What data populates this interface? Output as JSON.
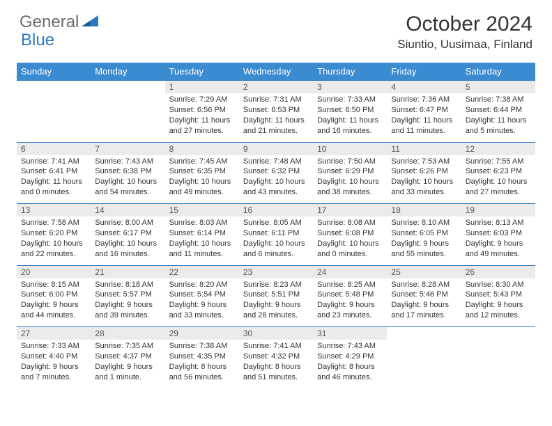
{
  "brand": {
    "part1": "General",
    "part2": "Blue"
  },
  "title": "October 2024",
  "location": "Siuntio, Uusimaa, Finland",
  "colors": {
    "header_bg": "#3b8bd0",
    "daynum_bg": "#ebebeb",
    "border": "#2b79c2",
    "text": "#333333",
    "logo_gray": "#6b6b6b",
    "logo_blue": "#2b79c2"
  },
  "font": {
    "family": "Arial",
    "title_size": 30,
    "location_size": 17,
    "header_size": 13,
    "daynum_size": 12,
    "body_size": 11
  },
  "day_headers": [
    "Sunday",
    "Monday",
    "Tuesday",
    "Wednesday",
    "Thursday",
    "Friday",
    "Saturday"
  ],
  "weeks": [
    [
      null,
      null,
      {
        "n": "1",
        "sr": "7:29 AM",
        "ss": "6:56 PM",
        "dl": "11 hours and 27 minutes."
      },
      {
        "n": "2",
        "sr": "7:31 AM",
        "ss": "6:53 PM",
        "dl": "11 hours and 21 minutes."
      },
      {
        "n": "3",
        "sr": "7:33 AM",
        "ss": "6:50 PM",
        "dl": "11 hours and 16 minutes."
      },
      {
        "n": "4",
        "sr": "7:36 AM",
        "ss": "6:47 PM",
        "dl": "11 hours and 11 minutes."
      },
      {
        "n": "5",
        "sr": "7:38 AM",
        "ss": "6:44 PM",
        "dl": "11 hours and 5 minutes."
      }
    ],
    [
      {
        "n": "6",
        "sr": "7:41 AM",
        "ss": "6:41 PM",
        "dl": "11 hours and 0 minutes."
      },
      {
        "n": "7",
        "sr": "7:43 AM",
        "ss": "6:38 PM",
        "dl": "10 hours and 54 minutes."
      },
      {
        "n": "8",
        "sr": "7:45 AM",
        "ss": "6:35 PM",
        "dl": "10 hours and 49 minutes."
      },
      {
        "n": "9",
        "sr": "7:48 AM",
        "ss": "6:32 PM",
        "dl": "10 hours and 43 minutes."
      },
      {
        "n": "10",
        "sr": "7:50 AM",
        "ss": "6:29 PM",
        "dl": "10 hours and 38 minutes."
      },
      {
        "n": "11",
        "sr": "7:53 AM",
        "ss": "6:26 PM",
        "dl": "10 hours and 33 minutes."
      },
      {
        "n": "12",
        "sr": "7:55 AM",
        "ss": "6:23 PM",
        "dl": "10 hours and 27 minutes."
      }
    ],
    [
      {
        "n": "13",
        "sr": "7:58 AM",
        "ss": "6:20 PM",
        "dl": "10 hours and 22 minutes."
      },
      {
        "n": "14",
        "sr": "8:00 AM",
        "ss": "6:17 PM",
        "dl": "10 hours and 16 minutes."
      },
      {
        "n": "15",
        "sr": "8:03 AM",
        "ss": "6:14 PM",
        "dl": "10 hours and 11 minutes."
      },
      {
        "n": "16",
        "sr": "8:05 AM",
        "ss": "6:11 PM",
        "dl": "10 hours and 6 minutes."
      },
      {
        "n": "17",
        "sr": "8:08 AM",
        "ss": "6:08 PM",
        "dl": "10 hours and 0 minutes."
      },
      {
        "n": "18",
        "sr": "8:10 AM",
        "ss": "6:05 PM",
        "dl": "9 hours and 55 minutes."
      },
      {
        "n": "19",
        "sr": "8:13 AM",
        "ss": "6:03 PM",
        "dl": "9 hours and 49 minutes."
      }
    ],
    [
      {
        "n": "20",
        "sr": "8:15 AM",
        "ss": "6:00 PM",
        "dl": "9 hours and 44 minutes."
      },
      {
        "n": "21",
        "sr": "8:18 AM",
        "ss": "5:57 PM",
        "dl": "9 hours and 39 minutes."
      },
      {
        "n": "22",
        "sr": "8:20 AM",
        "ss": "5:54 PM",
        "dl": "9 hours and 33 minutes."
      },
      {
        "n": "23",
        "sr": "8:23 AM",
        "ss": "5:51 PM",
        "dl": "9 hours and 28 minutes."
      },
      {
        "n": "24",
        "sr": "8:25 AM",
        "ss": "5:48 PM",
        "dl": "9 hours and 23 minutes."
      },
      {
        "n": "25",
        "sr": "8:28 AM",
        "ss": "5:46 PM",
        "dl": "9 hours and 17 minutes."
      },
      {
        "n": "26",
        "sr": "8:30 AM",
        "ss": "5:43 PM",
        "dl": "9 hours and 12 minutes."
      }
    ],
    [
      {
        "n": "27",
        "sr": "7:33 AM",
        "ss": "4:40 PM",
        "dl": "9 hours and 7 minutes."
      },
      {
        "n": "28",
        "sr": "7:35 AM",
        "ss": "4:37 PM",
        "dl": "9 hours and 1 minute."
      },
      {
        "n": "29",
        "sr": "7:38 AM",
        "ss": "4:35 PM",
        "dl": "8 hours and 56 minutes."
      },
      {
        "n": "30",
        "sr": "7:41 AM",
        "ss": "4:32 PM",
        "dl": "8 hours and 51 minutes."
      },
      {
        "n": "31",
        "sr": "7:43 AM",
        "ss": "4:29 PM",
        "dl": "8 hours and 46 minutes."
      },
      null,
      null
    ]
  ],
  "labels": {
    "sunrise": "Sunrise:",
    "sunset": "Sunset:",
    "daylight": "Daylight:"
  }
}
